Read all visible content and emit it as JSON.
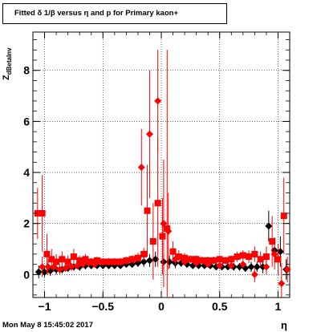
{
  "title": "Fitted δ 1/β versus η and p for Primary kaon+",
  "footer": "Mon May  8 15:45:02 2017",
  "xlabel": "η",
  "ylabel_main": "Z",
  "ylabel_sub": "dBetaInv",
  "chart_data": {
    "type": "scatter",
    "title": "Fitted δ 1/β versus η and p for Primary kaon+",
    "xlabel": "η",
    "ylabel": "Z_dBetaInv",
    "xlim": [
      -1.1,
      1.1
    ],
    "ylim": [
      -0.9,
      9.5
    ],
    "x_ticks": [
      -1,
      -0.5,
      0,
      0.5,
      1
    ],
    "x_tick_labels": [
      "−1",
      "−0.5",
      "0",
      "0.5",
      "1"
    ],
    "y_ticks": [
      0,
      2,
      4,
      6,
      8
    ],
    "y_tick_labels": [
      "0",
      "2",
      "4",
      "6",
      "8"
    ],
    "grid": true,
    "series": [
      {
        "color": "#000000",
        "marker": "diamond",
        "points": [
          [
            -1.05,
            0.1,
            0.25
          ],
          [
            -1.0,
            0.1,
            0.2
          ],
          [
            -0.95,
            0.15,
            0.2
          ],
          [
            -0.9,
            0.2,
            0.2
          ],
          [
            -0.85,
            0.2,
            0.15
          ],
          [
            -0.8,
            0.25,
            0.15
          ],
          [
            -0.75,
            0.3,
            0.15
          ],
          [
            -0.7,
            0.3,
            0.15
          ],
          [
            -0.65,
            0.35,
            0.15
          ],
          [
            -0.6,
            0.35,
            0.12
          ],
          [
            -0.55,
            0.35,
            0.12
          ],
          [
            -0.5,
            0.35,
            0.12
          ],
          [
            -0.45,
            0.35,
            0.12
          ],
          [
            -0.4,
            0.35,
            0.12
          ],
          [
            -0.35,
            0.35,
            0.12
          ],
          [
            -0.3,
            0.4,
            0.12
          ],
          [
            -0.25,
            0.4,
            0.12
          ],
          [
            -0.2,
            0.45,
            0.15
          ],
          [
            -0.15,
            0.5,
            0.2
          ],
          [
            -0.1,
            0.55,
            0.25
          ],
          [
            -0.05,
            0.6,
            0.3
          ],
          [
            0.02,
            0.5,
            0.3
          ],
          [
            0.07,
            0.5,
            0.25
          ],
          [
            0.12,
            0.45,
            0.2
          ],
          [
            0.17,
            0.45,
            0.15
          ],
          [
            0.22,
            0.4,
            0.12
          ],
          [
            0.27,
            0.35,
            0.12
          ],
          [
            0.32,
            0.35,
            0.12
          ],
          [
            0.37,
            0.35,
            0.12
          ],
          [
            0.42,
            0.35,
            0.12
          ],
          [
            0.47,
            0.3,
            0.12
          ],
          [
            0.52,
            0.3,
            0.12
          ],
          [
            0.57,
            0.3,
            0.12
          ],
          [
            0.62,
            0.3,
            0.15
          ],
          [
            0.67,
            0.3,
            0.15
          ],
          [
            0.72,
            0.25,
            0.15
          ],
          [
            0.77,
            0.3,
            0.2
          ],
          [
            0.82,
            0.3,
            0.2
          ],
          [
            0.87,
            0.3,
            0.25
          ],
          [
            0.92,
            1.9,
            0.6
          ],
          [
            0.97,
            0.95,
            0.5
          ],
          [
            1.02,
            0.9,
            0.6
          ],
          [
            1.07,
            0.2,
            0.4
          ]
        ]
      },
      {
        "color": "#ff0000",
        "marker": "square",
        "points": [
          [
            -1.06,
            2.4,
            1.0
          ],
          [
            -1.02,
            2.4,
            1.5
          ],
          [
            -0.98,
            0.8,
            0.8
          ],
          [
            -0.94,
            0.6,
            0.4
          ],
          [
            -0.9,
            0.5,
            0.3
          ],
          [
            -0.85,
            0.6,
            0.3
          ],
          [
            -0.8,
            0.5,
            0.25
          ],
          [
            -0.75,
            0.7,
            0.3
          ],
          [
            -0.7,
            0.55,
            0.2
          ],
          [
            -0.65,
            0.6,
            0.2
          ],
          [
            -0.6,
            0.5,
            0.15
          ],
          [
            -0.55,
            0.55,
            0.15
          ],
          [
            -0.5,
            0.5,
            0.15
          ],
          [
            -0.45,
            0.5,
            0.15
          ],
          [
            -0.4,
            0.5,
            0.15
          ],
          [
            -0.35,
            0.5,
            0.15
          ],
          [
            -0.3,
            0.55,
            0.15
          ],
          [
            -0.25,
            0.6,
            0.15
          ],
          [
            -0.2,
            0.65,
            0.2
          ],
          [
            -0.15,
            0.8,
            0.25
          ],
          [
            -0.12,
            2.5,
            1.8
          ],
          [
            -0.07,
            1.3,
            1.5
          ],
          [
            -0.03,
            2.8,
            2.5
          ],
          [
            0.01,
            1.5,
            1.5
          ],
          [
            0.05,
            1.8,
            7.0
          ],
          [
            0.1,
            0.9,
            0.4
          ],
          [
            0.15,
            0.7,
            0.25
          ],
          [
            0.2,
            0.65,
            0.2
          ],
          [
            0.25,
            0.6,
            0.15
          ],
          [
            0.3,
            0.6,
            0.15
          ],
          [
            0.35,
            0.55,
            0.15
          ],
          [
            0.4,
            0.55,
            0.15
          ],
          [
            0.45,
            0.55,
            0.15
          ],
          [
            0.5,
            0.6,
            0.15
          ],
          [
            0.55,
            0.55,
            0.15
          ],
          [
            0.6,
            0.6,
            0.15
          ],
          [
            0.65,
            0.7,
            0.2
          ],
          [
            0.7,
            0.75,
            0.2
          ],
          [
            0.75,
            0.7,
            0.25
          ],
          [
            0.8,
            0.8,
            0.3
          ],
          [
            0.85,
            0.6,
            0.3
          ],
          [
            0.9,
            0.7,
            0.4
          ],
          [
            0.95,
            1.3,
            1.0
          ],
          [
            1.0,
            0.6,
            0.6
          ],
          [
            1.05,
            2.3,
            1.5
          ]
        ]
      },
      {
        "color": "#ff0000",
        "marker": "diamond",
        "points": [
          [
            -1.02,
            0.3,
            0.4
          ],
          [
            -0.97,
            0.3,
            0.3
          ],
          [
            -0.92,
            0.3,
            0.2
          ],
          [
            -0.87,
            0.2,
            0.2
          ],
          [
            -0.82,
            0.25,
            0.15
          ],
          [
            -0.77,
            0.3,
            0.15
          ],
          [
            -0.72,
            0.35,
            0.15
          ],
          [
            -0.67,
            0.4,
            0.12
          ],
          [
            -0.62,
            0.45,
            0.12
          ],
          [
            -0.57,
            0.4,
            0.12
          ],
          [
            -0.17,
            4.2,
            1.5
          ],
          [
            -0.1,
            5.5,
            2.5
          ],
          [
            -0.03,
            6.8,
            2.0
          ],
          [
            0.02,
            2.0,
            2.5
          ],
          [
            0.06,
            1.7,
            1.5
          ],
          [
            0.12,
            0.6,
            0.2
          ],
          [
            0.2,
            0.5,
            0.15
          ],
          [
            0.3,
            0.45,
            0.12
          ],
          [
            0.4,
            0.4,
            0.12
          ],
          [
            0.5,
            0.35,
            0.12
          ],
          [
            0.6,
            0.35,
            0.12
          ],
          [
            0.7,
            0.4,
            0.15
          ],
          [
            0.8,
            0.0,
            0.3
          ],
          [
            0.9,
            0.3,
            0.3
          ],
          [
            0.97,
            0.8,
            0.6
          ],
          [
            1.03,
            -0.35,
            0.8
          ],
          [
            1.08,
            0.2,
            0.5
          ]
        ]
      }
    ]
  }
}
